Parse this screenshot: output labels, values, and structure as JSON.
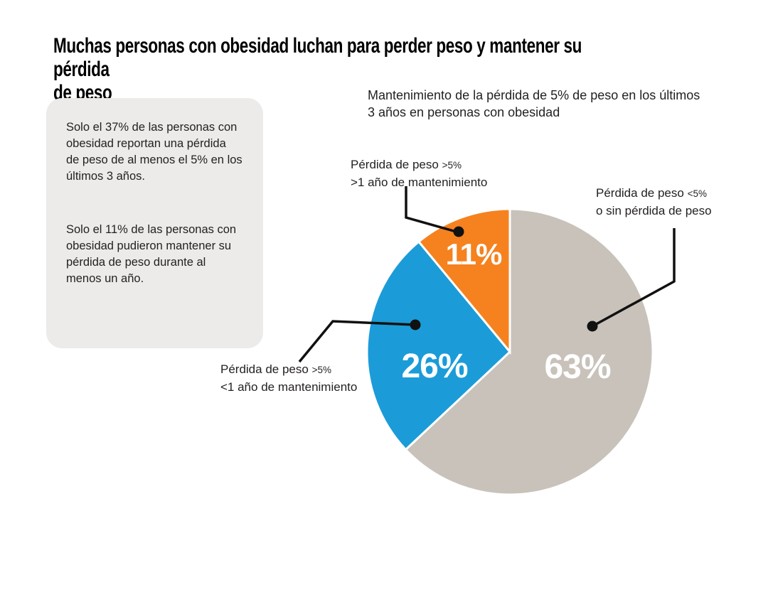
{
  "title": "Muchas personas con obesidad luchan para perder peso y mantener su pérdida\nde peso",
  "callout_box": {
    "paragraph1": "Solo el 37% de las personas con\nobesidad reportan una pérdida\nde peso de al menos el 5% en los\núltimos 3 años.",
    "paragraph2": "Solo el 11% de las personas con\nobesidad pudieron mantener su\npérdida de peso durante al\nmenos un año.",
    "background_color": "#ecebe9"
  },
  "chart_data": {
    "type": "pie",
    "title": "Mantenimiento de la pérdida de 5% de peso en los últimos\n3 años en personas con obesidad",
    "start_angle_deg": 0,
    "direction": "clockwise",
    "value_label_color": "#ffffff",
    "slices": [
      {
        "value": 63,
        "display": "63%",
        "color": "#c8c2ba",
        "label_main": "Pérdida de peso",
        "label_qualifier": "<5%",
        "label_line2": "o sin pérdida de peso"
      },
      {
        "value": 26,
        "display": "26%",
        "color": "#1b9cd8",
        "label_main": "Pérdida de peso",
        "label_qualifier": ">5%",
        "label_line2": "<1 año de mantenimiento"
      },
      {
        "value": 11,
        "display": "11%",
        "color": "#f5821f",
        "label_main": "Pérdida de peso",
        "label_qualifier": ">5%",
        "label_line2": ">1 año de mantenimiento"
      }
    ]
  }
}
